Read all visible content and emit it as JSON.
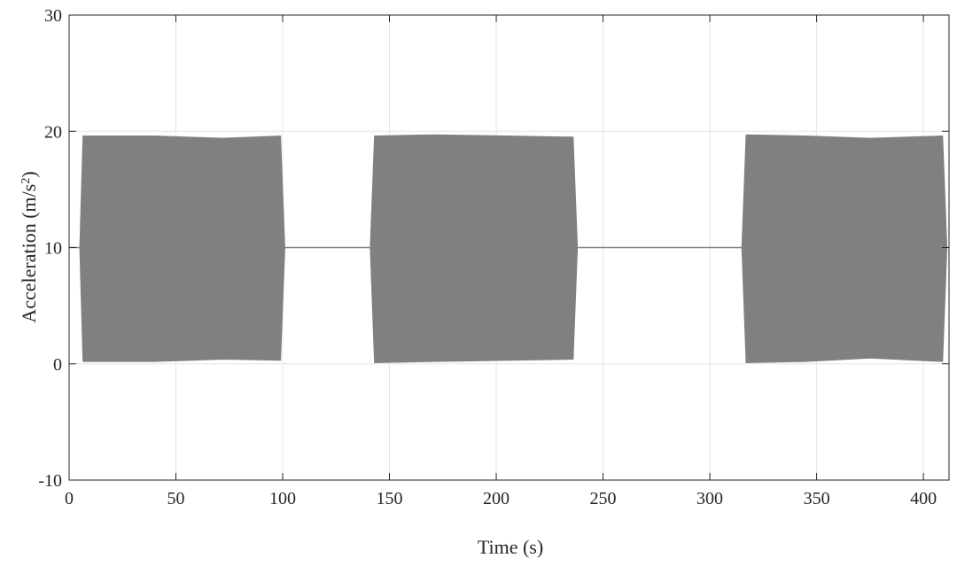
{
  "chart_data": {
    "type": "area",
    "xlabel": "Time (s)",
    "ylabel_main": "Acceleration (m/s",
    "ylabel_sup": "2",
    "ylabel_close": ")",
    "xlim": [
      0,
      412
    ],
    "ylim": [
      -10,
      30
    ],
    "xticks": [
      0,
      50,
      100,
      150,
      200,
      250,
      300,
      350,
      400
    ],
    "yticks": [
      -10,
      0,
      10,
      20,
      30
    ],
    "grid": true,
    "series_color": "#808080",
    "baseline": 10,
    "bursts": [
      {
        "start": 5,
        "end": 101,
        "upper": [
          [
            5,
            10
          ],
          [
            6.5,
            19.6
          ],
          [
            40,
            19.6
          ],
          [
            72,
            19.4
          ],
          [
            99,
            19.6
          ],
          [
            101,
            10
          ]
        ],
        "lower": [
          [
            5,
            10
          ],
          [
            6.5,
            0.2
          ],
          [
            40,
            0.2
          ],
          [
            72,
            0.4
          ],
          [
            99,
            0.3
          ],
          [
            101,
            10
          ]
        ]
      },
      {
        "start": 141,
        "end": 238,
        "upper": [
          [
            141,
            10
          ],
          [
            143,
            19.6
          ],
          [
            170,
            19.7
          ],
          [
            205,
            19.6
          ],
          [
            236,
            19.5
          ],
          [
            238,
            10
          ]
        ],
        "lower": [
          [
            141,
            10
          ],
          [
            143,
            0.1
          ],
          [
            170,
            0.2
          ],
          [
            205,
            0.3
          ],
          [
            236,
            0.4
          ],
          [
            238,
            10
          ]
        ]
      },
      {
        "start": 315,
        "end": 411,
        "upper": [
          [
            315,
            10
          ],
          [
            317,
            19.7
          ],
          [
            345,
            19.6
          ],
          [
            375,
            19.4
          ],
          [
            409,
            19.6
          ],
          [
            411,
            10
          ]
        ],
        "lower": [
          [
            315,
            10
          ],
          [
            317,
            0.1
          ],
          [
            345,
            0.2
          ],
          [
            375,
            0.5
          ],
          [
            409,
            0.2
          ],
          [
            411,
            10
          ]
        ]
      }
    ]
  }
}
